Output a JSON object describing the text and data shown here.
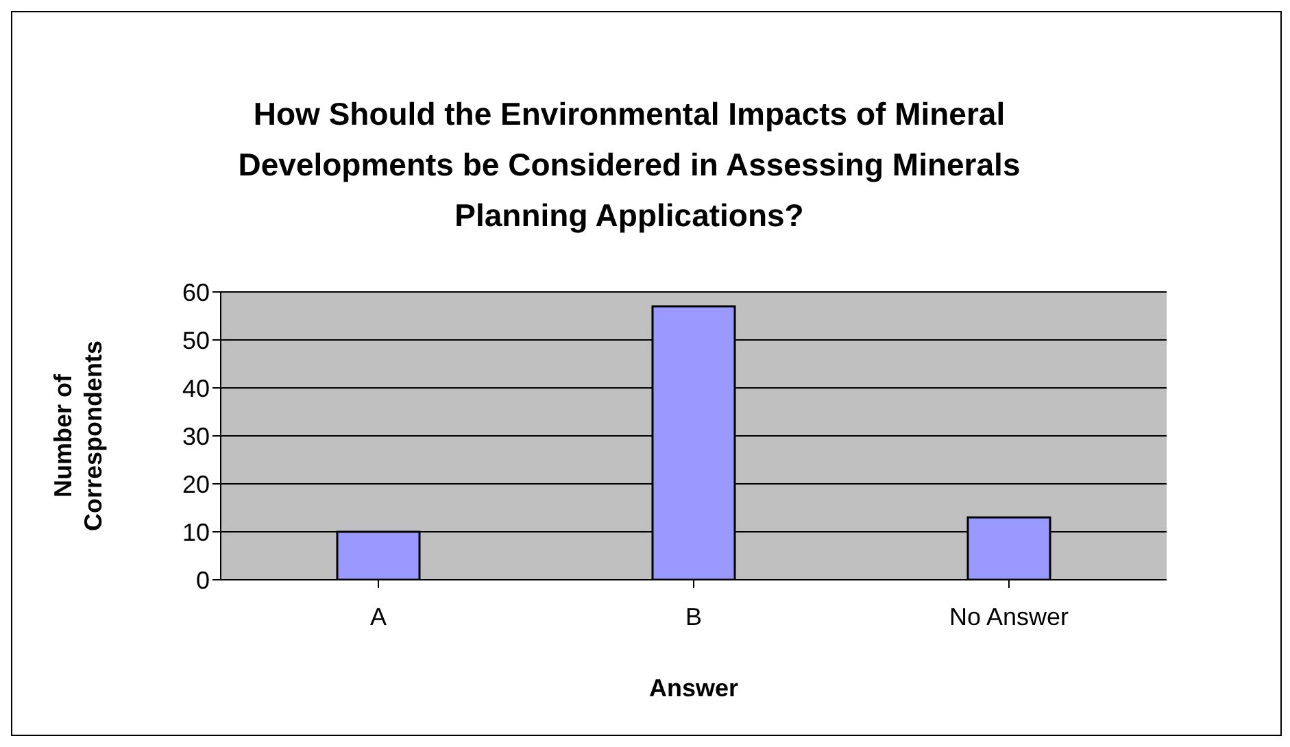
{
  "chart_data": {
    "type": "bar",
    "title": "How Should the Environmental Impacts of Mineral Developments be Considered in Assessing Minerals Planning Applications?",
    "xlabel": "Answer",
    "ylabel": "Number of\nCorrespondents",
    "categories": [
      "A",
      "B",
      "No Answer"
    ],
    "values": [
      10,
      57,
      13
    ],
    "color": "#9999ff",
    "ylim": [
      0,
      60
    ],
    "yticks": [
      0,
      10,
      20,
      30,
      40,
      50,
      60
    ],
    "grid": "y"
  }
}
